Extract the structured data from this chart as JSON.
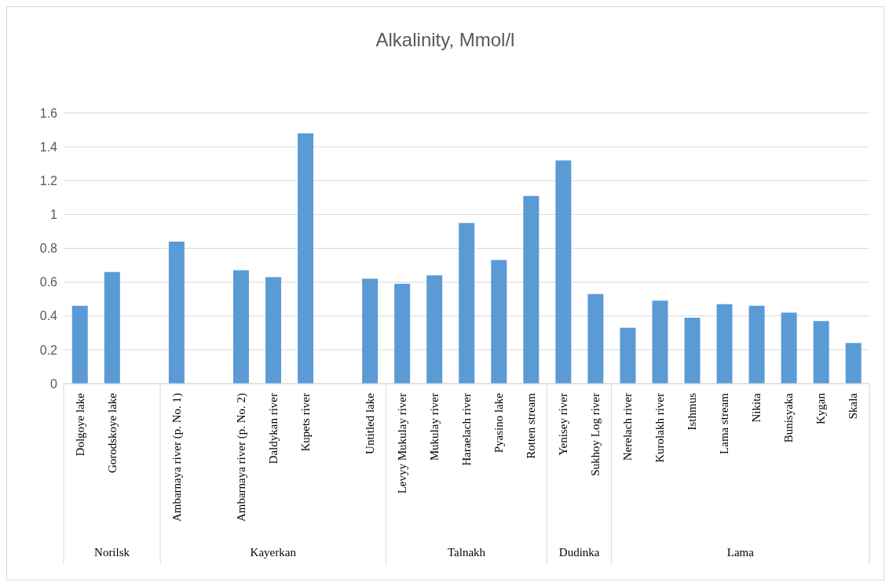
{
  "chart_data": {
    "type": "bar",
    "title": "Alkalinity, Mmol/l",
    "categories": [
      "Dolgoye lake",
      "Gorodskoye lake",
      null,
      "Ambarnaya river (p. No. 1)",
      null,
      "Ambarnaya river (p. No. 2)",
      "Daldykan river",
      "Kupets river",
      null,
      "Untitled lake",
      "Levyy Mukulay river",
      "Mukulay river",
      "Haraelach river",
      "Pyasino lake",
      "Rotten stream",
      "Yenisey river",
      "Sukhoy Log river",
      "Nerelach river",
      "Kurolakh river",
      "Isthmus",
      "Lama stream",
      "Nikita",
      "Bunisyaka",
      "Kygan",
      "Skala"
    ],
    "values": [
      0.46,
      0.66,
      null,
      0.84,
      null,
      0.67,
      0.63,
      1.48,
      null,
      0.62,
      0.59,
      0.64,
      0.95,
      0.73,
      1.11,
      1.32,
      0.53,
      0.33,
      0.49,
      0.39,
      0.47,
      0.46,
      0.42,
      0.37,
      0.24
    ],
    "color": "#5b9bd5",
    "ylim": [
      0,
      1.6
    ],
    "yticks": [
      0,
      0.2,
      0.4,
      0.6,
      0.8,
      1,
      1.2,
      1.4,
      1.6
    ],
    "grid": "y",
    "annotations": [
      "Norilsk",
      "Kayerkan",
      "Talnakh",
      "Dudinka",
      "Lama"
    ]
  }
}
